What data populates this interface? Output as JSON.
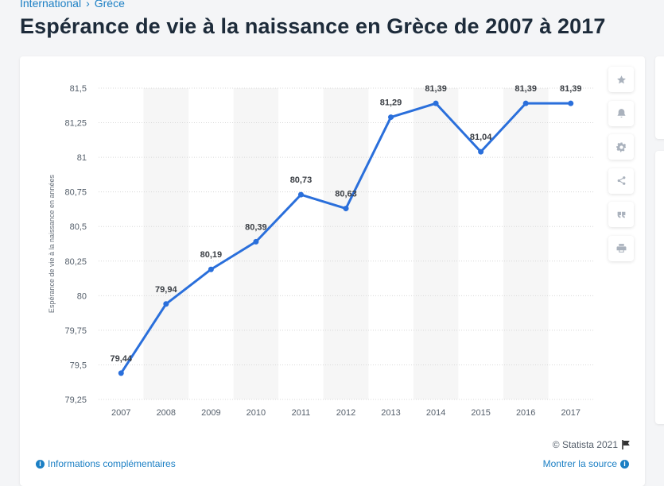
{
  "breadcrumb": {
    "items": [
      "International",
      "Grèce"
    ]
  },
  "page": {
    "title": "Espérance de vie à la naissance en Grèce de 2007 à 2017"
  },
  "footer": {
    "copyright": "© Statista 2021",
    "info_link": "Informations complémentaires",
    "source_link": "Montrer la source"
  },
  "colors": {
    "line": "#2a6fdb",
    "band": "#f6f6f6",
    "grid": "#d8d8d8",
    "link": "#1b7fc4"
  },
  "chart_data": {
    "type": "line",
    "title": "",
    "xlabel": "",
    "ylabel": "Espérance de vie à la naissance en années",
    "categories": [
      "2007",
      "2008",
      "2009",
      "2010",
      "2011",
      "2012",
      "2013",
      "2014",
      "2015",
      "2016",
      "2017"
    ],
    "series": [
      {
        "name": "Espérance de vie",
        "values": [
          79.44,
          79.94,
          80.19,
          80.39,
          80.73,
          80.63,
          81.29,
          81.39,
          81.04,
          81.39,
          81.39
        ],
        "labels": [
          "79,44",
          "79,94",
          "80,19",
          "80,39",
          "80,73",
          "80,63",
          "81,29",
          "81,39",
          "81,04",
          "81,39",
          "81,39"
        ]
      }
    ],
    "ylim": [
      79.25,
      81.5
    ],
    "yticks": [
      79.25,
      79.5,
      79.75,
      80,
      80.25,
      80.5,
      80.75,
      81,
      81.25,
      81.5
    ],
    "ytick_labels": [
      "79,25",
      "79,5",
      "79,75",
      "80",
      "80,25",
      "80,5",
      "80,75",
      "81",
      "81,25",
      "81,5"
    ],
    "grid": true
  }
}
